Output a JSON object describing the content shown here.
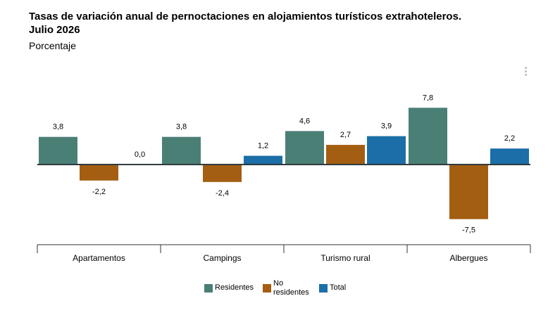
{
  "title_lines": [
    "Tasas de variación anual de pernoctaciones en alojamientos turísticos extrahoteleros.",
    "Julio 2026"
  ],
  "subtitle": "Porcentaje",
  "menu_icon": "kebab-menu-icon",
  "colors": {
    "Residentes": "#4a7f76",
    "No residentes": "#a35e12",
    "Total": "#1b6ea7",
    "zero_line": "#2f3b3e",
    "axis": "#333333"
  },
  "chart_data": {
    "type": "bar",
    "categories": [
      "Apartamentos",
      "Campings",
      "Turismo rural",
      "Albergues"
    ],
    "series": [
      {
        "name": "Residentes",
        "values": [
          3.8,
          3.8,
          4.6,
          7.8
        ],
        "labels": [
          "3,8",
          "3,8",
          "4,6",
          "7,8"
        ]
      },
      {
        "name": "No residentes",
        "values": [
          -2.2,
          -2.4,
          2.7,
          -7.5
        ],
        "labels": [
          "-2,2",
          "-2,4",
          "2,7",
          "-7,5"
        ]
      },
      {
        "name": "Total",
        "values": [
          0.0,
          1.2,
          3.9,
          2.2
        ],
        "labels": [
          "0,0",
          "1,2",
          "3,9",
          "2,2"
        ]
      }
    ],
    "legend": {
      "position": "bottom",
      "items": [
        {
          "key": "Residentes",
          "label": "Residentes"
        },
        {
          "key": "No residentes",
          "label": "No residentes"
        },
        {
          "key": "Total",
          "label": "Total"
        }
      ]
    },
    "grid": false
  }
}
